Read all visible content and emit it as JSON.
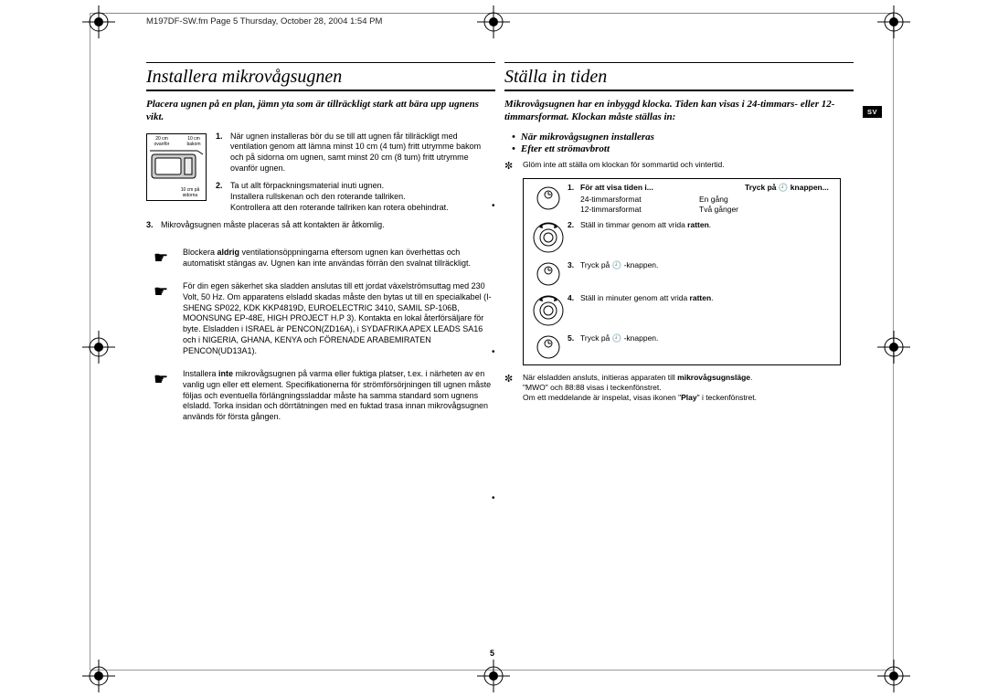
{
  "header": "M197DF-SW.fm  Page 5  Thursday, October 28, 2004  1:54 PM",
  "page_number": "5",
  "language_tab": "SV",
  "left": {
    "title": "Installera mikrovågsugnen",
    "intro": "Placera ugnen på en plan, jämn yta som är tillräckligt stark att bära upp ugnens vikt.",
    "diagram": {
      "above": "20 cm ovanför",
      "behind": "10 cm bakom",
      "sides": "10 cm på sidorna"
    },
    "steps": [
      "När ugnen installeras bör du se till att ugnen får tillräckligt med ventilation genom att lämna minst 10 cm (4 tum) fritt utrymme bakom och på sidorna om ugnen, samt minst 20 cm (8 tum) fritt utrymme ovanför ugnen.",
      "Ta ut allt förpackningsmaterial inuti ugnen.\nInstallera rullskenan och den roterande tallriken.\nKontrollera att den roterande tallriken kan rotera obehindrat.",
      "Mikrovågsugnen måste placeras så att kontakten är åtkomlig."
    ],
    "warnings": [
      "Blockera aldrig ventilationsöppningarna eftersom ugnen kan överhettas och automatiskt stängas av. Ugnen kan inte användas förrän den svalnat tillräckligt.",
      "För din egen säkerhet ska sladden anslutas till ett jordat växelströmsuttag med 230 Volt, 50 Hz. Om apparatens elsladd skadas måste den bytas ut till en specialkabel (I-SHENG SP022, KDK KKP4819D, EUROELECTRIC 3410, SAMIL SP-106B, MOONSUNG EP-48E, HIGH PROJECT H.P 3). Kontakta en lokal återförsäljare för byte. Elsladden i ISRAEL är PENCON(ZD16A), i SYDAFRIKA APEX LEADS SA16 och i NIGERIA, GHANA, KENYA och FÖRENADE ARABEMIRATEN PENCON(UD13A1).",
      "Installera inte mikrovågsugnen på varma eller fuktiga platser, t.ex. i närheten av en vanlig ugn eller ett element. Specifikationerna för strömförsörjningen till ugnen måste följas och eventuella förlängningssladdar måste ha samma standard som ugnens elsladd. Torka insidan och dörrtätningen med en fuktad trasa innan mikrovågsugnen används för första gången."
    ]
  },
  "right": {
    "title": "Ställa in tiden",
    "intro": "Mikrovågsugnen har en inbyggd klocka. Tiden kan visas i 24-timmars- eller 12-timmarsformat. Klockan måste ställas in:",
    "bullets": [
      "När mikrovågsugnen installeras",
      "Efter ett strömavbrott"
    ],
    "note1": "Glöm inte att ställa om klockan för sommartid och vintertid.",
    "table_head_l": "För att visa tiden i...",
    "table_head_r": "Tryck på 🕘  knappen...",
    "table": [
      {
        "c1": "24-timmarsformat",
        "c2": "En gång"
      },
      {
        "c1": "12-timmarsformat",
        "c2": "Två gånger"
      }
    ],
    "steps": [
      "",
      "Ställ in timmar genom att vrida ratten.",
      "Tryck på 🕘 -knappen.",
      "Ställ in minuter genom att vrida ratten.",
      "Tryck på 🕘 -knappen."
    ],
    "note2a": "När elsladden ansluts, initieras apparaten till mikrovågsugnsläge.",
    "note2b": "\"MWO\" och 88:88 visas i teckenfönstret.",
    "note2c": "Om ett meddelande är inspelat, visas ikonen \"Play\" i teckenfönstret."
  },
  "colors": {
    "text": "#000000",
    "border": "#999999",
    "bg": "#ffffff",
    "tab_bg": "#000000",
    "tab_fg": "#ffffff"
  }
}
